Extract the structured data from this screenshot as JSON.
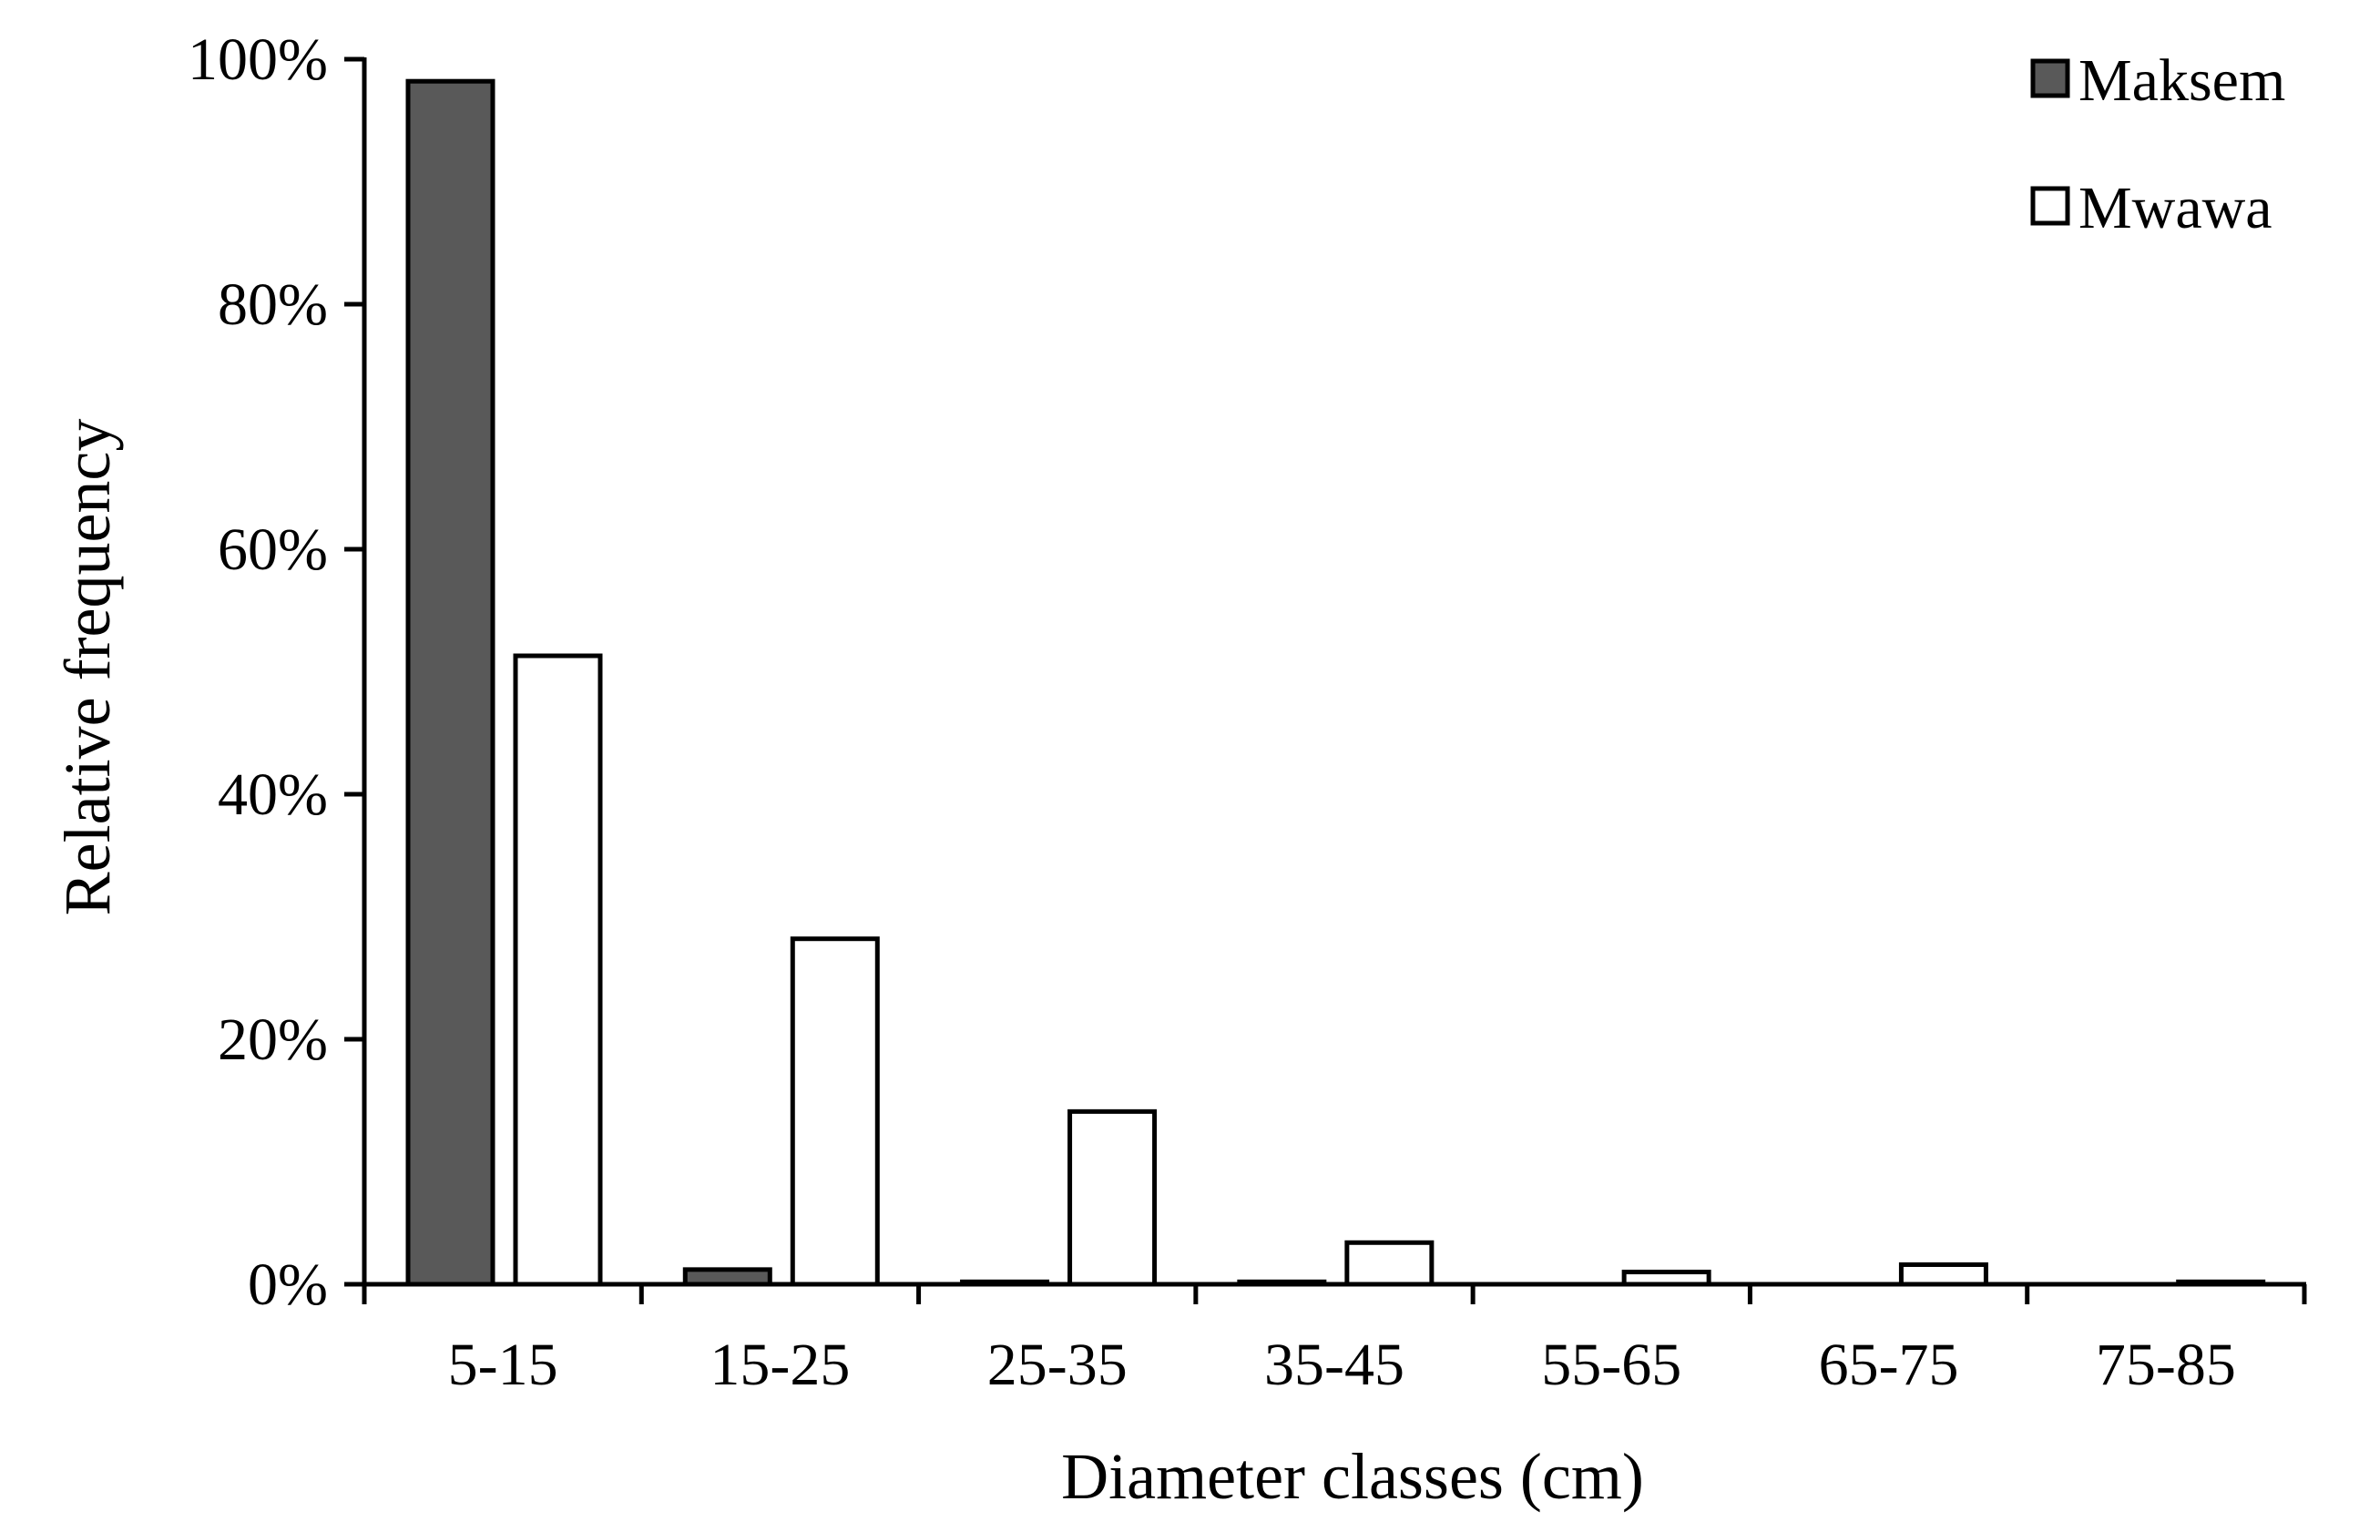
{
  "chart_data": {
    "type": "bar",
    "title": "",
    "xlabel": "Diameter classes (cm)",
    "ylabel": "Relative frequency",
    "categories": [
      "5-15",
      "15-25",
      "25-35",
      "35-45",
      "55-65",
      "65-75",
      "75-85"
    ],
    "series": [
      {
        "name": "Maksem",
        "color": "#595959",
        "values": [
          98.2,
          1.2,
          0.2,
          0.2,
          0.0,
          0.0,
          0.0
        ]
      },
      {
        "name": "Mwawa",
        "color": "#ffffff",
        "values": [
          51.3,
          28.2,
          14.1,
          3.4,
          1.0,
          1.6,
          0.2
        ]
      }
    ],
    "ylim": [
      0,
      100
    ],
    "yticks": [
      0,
      20,
      40,
      60,
      80,
      100
    ],
    "ytick_labels": [
      "0%",
      "20%",
      "40%",
      "60%",
      "80%",
      "100%"
    ],
    "grid": false,
    "legend_position": "top-right"
  }
}
